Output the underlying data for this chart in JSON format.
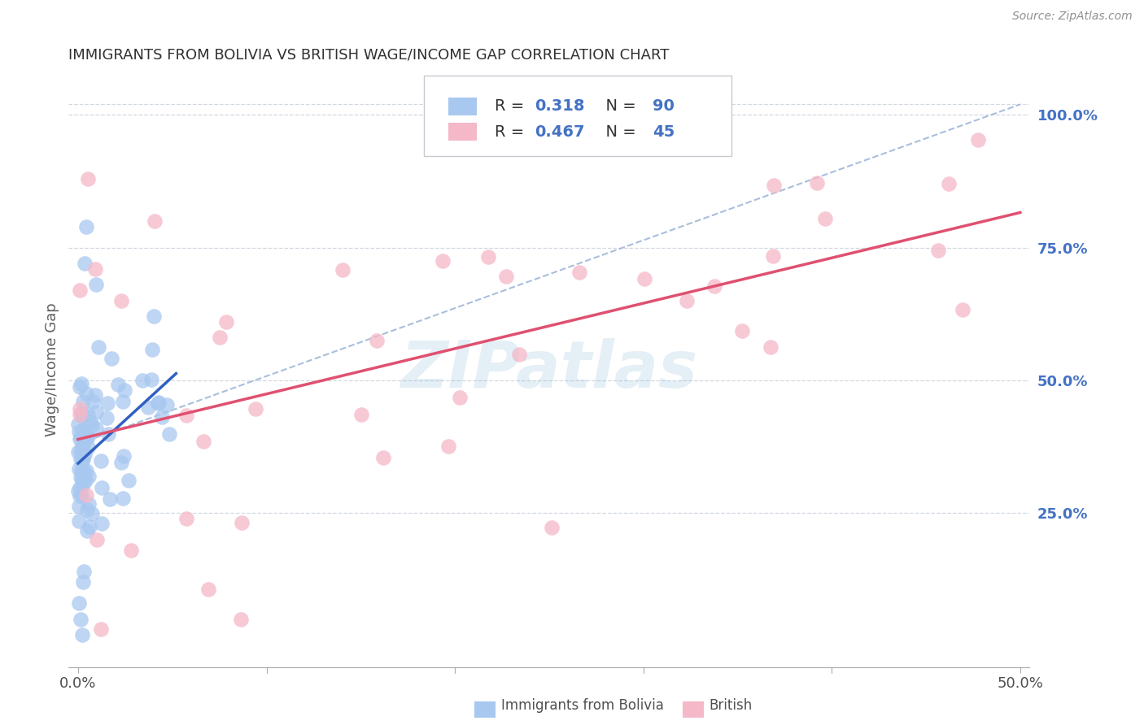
{
  "title": "IMMIGRANTS FROM BOLIVIA VS BRITISH WAGE/INCOME GAP CORRELATION CHART",
  "source": "Source: ZipAtlas.com",
  "ylabel": "Wage/Income Gap",
  "watermark_text": "ZIPatlas",
  "bolivia_R": 0.318,
  "bolivia_N": 90,
  "british_R": 0.467,
  "british_N": 45,
  "bolivia_color": "#a8c8f0",
  "british_color": "#f5b8c8",
  "bolivia_line_color": "#3060c0",
  "british_line_color": "#e05070",
  "dashed_line_color": "#a0b8d8",
  "grid_color": "#d0d8e0",
  "right_tick_color": "#4472c4",
  "background_color": "#ffffff",
  "title_color": "#303030",
  "ylabel_color": "#606060",
  "source_color": "#909090",
  "tick_label_color": "#505050",
  "legend_edge_color": "#c8c8d0",
  "xmin": 0.0,
  "xmax": 0.5,
  "ymin": 0.0,
  "ymax": 1.05,
  "ytick_vals": [
    0.25,
    0.5,
    0.75,
    1.0
  ],
  "ytick_labels": [
    "25.0%",
    "50.0%",
    "75.0%",
    "100.0%"
  ]
}
